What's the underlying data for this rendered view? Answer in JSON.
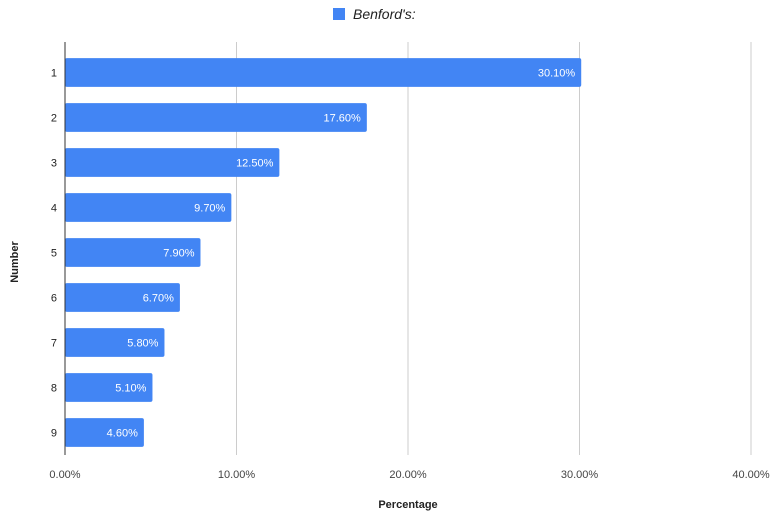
{
  "chart_data": {
    "type": "bar",
    "orientation": "horizontal",
    "categories": [
      "1",
      "2",
      "3",
      "4",
      "5",
      "6",
      "7",
      "8",
      "9"
    ],
    "series": [
      {
        "name": "Benford's:",
        "values": [
          30.1,
          17.6,
          12.5,
          9.7,
          7.9,
          6.7,
          5.8,
          5.1,
          4.6
        ],
        "data_labels": [
          "30.10%",
          "17.60%",
          "12.50%",
          "9.70%",
          "7.90%",
          "6.70%",
          "5.80%",
          "5.10%",
          "4.60%"
        ]
      }
    ],
    "xlabel": "Percentage",
    "ylabel": "Number",
    "xlim": [
      0,
      40
    ],
    "xticks": [
      0,
      10,
      20,
      30,
      40
    ],
    "xtick_labels": [
      "0.00%",
      "10.00%",
      "20.00%",
      "30.00%",
      "40.00%"
    ],
    "grid": true,
    "legend_position": "top",
    "colors": {
      "bar": "#4285f4",
      "grid": "#cccccc",
      "axis": "#333333"
    }
  }
}
